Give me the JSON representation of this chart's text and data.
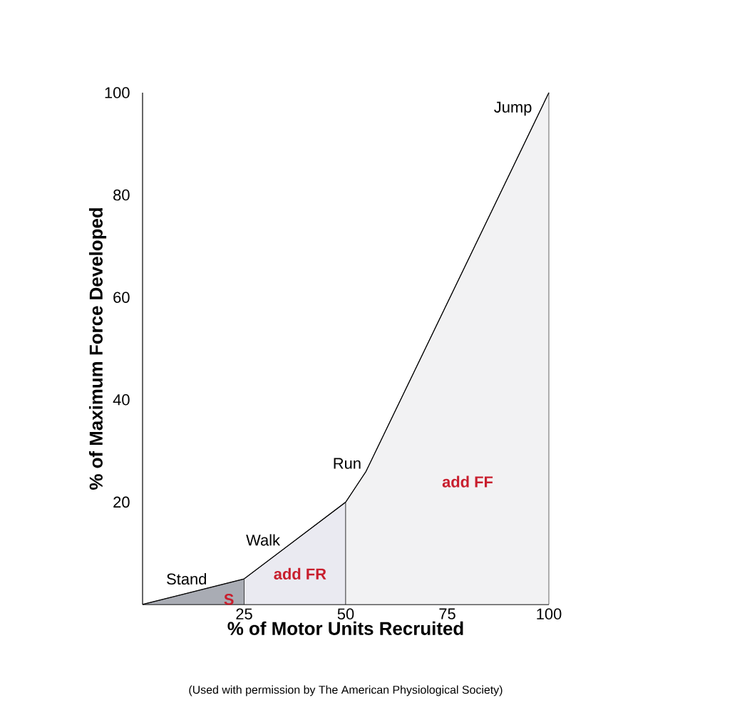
{
  "chart_data": {
    "type": "area",
    "xlabel": "% of Motor Units Recruited",
    "ylabel": "% of Maximum Force Developed",
    "xlim": [
      0,
      100
    ],
    "ylim": [
      0,
      100
    ],
    "xticks": [
      25,
      50,
      75,
      100
    ],
    "yticks": [
      20,
      40,
      60,
      80,
      100
    ],
    "series": [
      {
        "name": "S",
        "color": "#a9acb4",
        "x": [
          0,
          25
        ],
        "values": [
          0,
          5
        ]
      },
      {
        "name": "add FR",
        "color": "#eaeaf1",
        "x": [
          25,
          50
        ],
        "values": [
          5,
          20
        ]
      },
      {
        "name": "add FF",
        "color": "#f2f2f3",
        "x": [
          50,
          55,
          100
        ],
        "values": [
          20,
          26,
          100
        ]
      }
    ],
    "annotations": [
      {
        "text": "Stand",
        "x": 17,
        "y": 3.4
      },
      {
        "text": "Walk",
        "x": 35,
        "y": 11
      },
      {
        "text": "Run",
        "x": 55,
        "y": 26
      },
      {
        "text": "Jump",
        "x": 97,
        "y": 95
      },
      "(Used with permission by The American Physiological Society)"
    ]
  }
}
